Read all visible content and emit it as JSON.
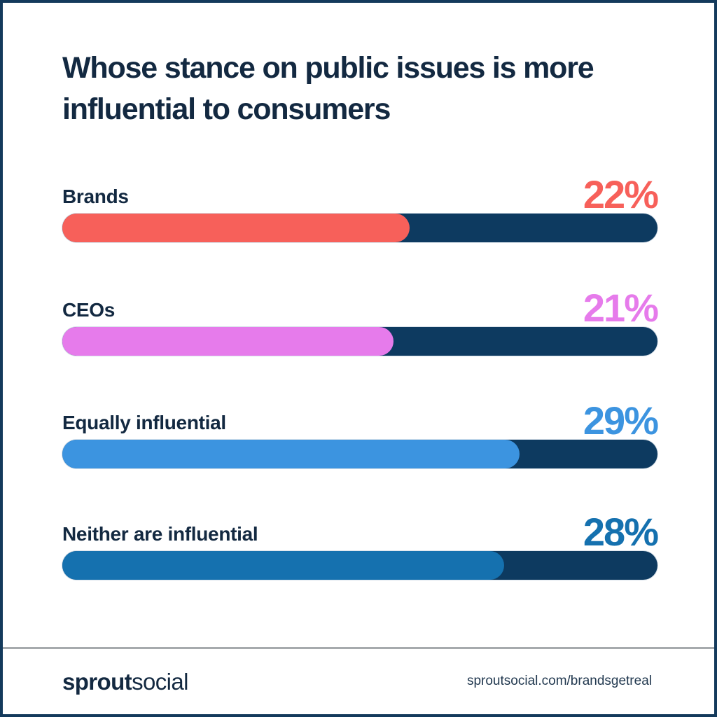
{
  "page": {
    "title_line1": "Whose stance on public issues is more",
    "title_line2": "influential to consumers"
  },
  "chart_data": {
    "type": "bar",
    "orientation": "horizontal",
    "title": "Whose stance on public issues is more influential to consumers",
    "categories": [
      "Brands",
      "CEOs",
      "Equally influential",
      "Neither are influential"
    ],
    "values": [
      22,
      21,
      29,
      28
    ],
    "value_labels": [
      "22%",
      "21%",
      "29%",
      "28%"
    ],
    "unit": "%",
    "bar_colors": [
      "#f7605a",
      "#e67beb",
      "#3c94e0",
      "#1571af"
    ],
    "track_color": "#0d3a60",
    "fill_scale_percent_per_unit": 2.65,
    "xlim": [
      0,
      37.7
    ],
    "grid": false,
    "legend": "none",
    "value_label_position": "top-right",
    "category_label_position": "top-left"
  },
  "footer": {
    "logo_bold": "sprout",
    "logo_light": "social",
    "url": "sproutsocial.com/brandsgetreal"
  },
  "colors": {
    "background": "#ffffff",
    "frame_border": "#143a5c",
    "heading_text": "#132941",
    "divider": "#a6aaad",
    "footer_url_text": "#21384f"
  }
}
